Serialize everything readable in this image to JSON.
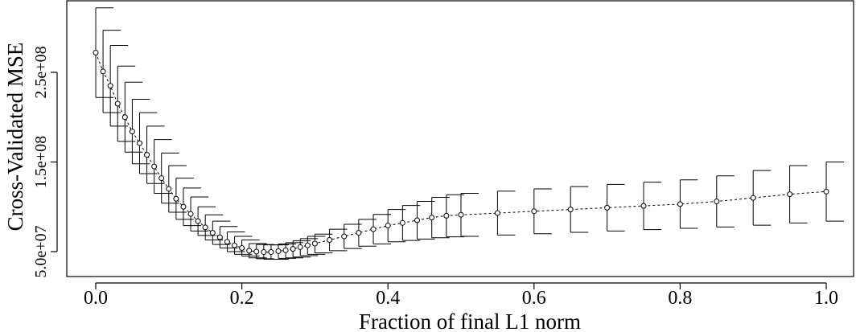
{
  "chart_data": {
    "type": "line",
    "title": "",
    "xlabel": "Fraction of final L1 norm",
    "ylabel": "Cross-Validated MSE",
    "xlim": [
      0.0,
      1.0
    ],
    "ylim": [
      45000000,
      275000000
    ],
    "x_ticks": [
      0.0,
      0.2,
      0.4,
      0.6,
      0.8,
      1.0
    ],
    "x_tick_labels": [
      "0.0",
      "0.2",
      "0.4",
      "0.6",
      "0.8",
      "1.0"
    ],
    "y_ticks": [
      50000000,
      150000000,
      250000000
    ],
    "y_tick_labels": [
      "5.0e+07",
      "1.5e+08",
      "2.5e+08"
    ],
    "grid": false,
    "legend": "none",
    "line_style": "dashed",
    "marker": "open-circle",
    "error_bars": true,
    "series": [
      {
        "x": [
          0.0,
          0.01,
          0.02,
          0.03,
          0.04,
          0.05,
          0.06,
          0.07,
          0.08,
          0.09,
          0.1,
          0.11,
          0.12,
          0.13,
          0.14,
          0.15,
          0.16,
          0.17,
          0.18,
          0.19,
          0.2,
          0.21,
          0.22,
          0.23,
          0.24,
          0.25,
          0.26,
          0.27,
          0.28,
          0.29,
          0.3,
          0.32,
          0.34,
          0.36,
          0.38,
          0.4,
          0.42,
          0.44,
          0.46,
          0.48,
          0.5,
          0.55,
          0.6,
          0.65,
          0.7,
          0.75,
          0.8,
          0.85,
          0.9,
          0.95,
          1.0
        ],
        "y": [
          272000000,
          251000000,
          235000000,
          215000000,
          200000000,
          184000000,
          171000000,
          158000000,
          145000000,
          132000000,
          120000000,
          109000000,
          100000000,
          92000000,
          84000000,
          77000000,
          71000000,
          66000000,
          61000000,
          57000000,
          54000000,
          51000000,
          50000000,
          49500000,
          49500000,
          50500000,
          51500000,
          53000000,
          55000000,
          57000000,
          59000000,
          63000000,
          67000000,
          71000000,
          75000000,
          79000000,
          82000000,
          85000000,
          88000000,
          90000000,
          91000000,
          93000000,
          95000000,
          97000000,
          99000000,
          101000000,
          103000000,
          106000000,
          110000000,
          114000000,
          117000000
        ],
        "lower": [
          222000000,
          205000000,
          190000000,
          173000000,
          161000000,
          148000000,
          137000000,
          126000000,
          115000000,
          104000000,
          94000000,
          86000000,
          79000000,
          73000000,
          68000000,
          63000000,
          58000000,
          54000000,
          50000000,
          47000000,
          45000000,
          43000000,
          42000000,
          41500000,
          41500000,
          42500000,
          43000000,
          44000000,
          45500000,
          47000000,
          48500000,
          51000000,
          53500000,
          56000000,
          58500000,
          61000000,
          62500000,
          64000000,
          65500000,
          66500000,
          67000000,
          68500000,
          70000000,
          71500000,
          73000000,
          74500000,
          76000000,
          77500000,
          79500000,
          82000000,
          84000000
        ],
        "upper": [
          322000000,
          297000000,
          280000000,
          257000000,
          239000000,
          220000000,
          205000000,
          190000000,
          175000000,
          160000000,
          146000000,
          132000000,
          121000000,
          111000000,
          100000000,
          91000000,
          84000000,
          78000000,
          72000000,
          67000000,
          63000000,
          59000000,
          58000000,
          57500000,
          57500000,
          58500000,
          60000000,
          62000000,
          64500000,
          67000000,
          69500000,
          75000000,
          80500000,
          86000000,
          91500000,
          97000000,
          101500000,
          106000000,
          110500000,
          113500000,
          115000000,
          117500000,
          120000000,
          122500000,
          125000000,
          127500000,
          130000000,
          134500000,
          140500000,
          146000000,
          150000000
        ]
      }
    ]
  }
}
